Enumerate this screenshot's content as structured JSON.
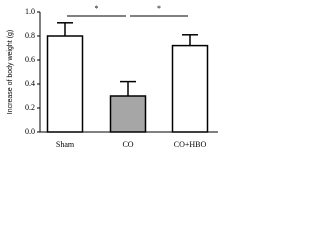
{
  "chart_data": {
    "type": "bar",
    "ylabel": "Increase of body weight (g)",
    "categories": [
      "Sham",
      "CO",
      "CO+HBO"
    ],
    "values": [
      0.8,
      0.3,
      0.72
    ],
    "errors": [
      0.11,
      0.12,
      0.09
    ],
    "colors": [
      "#ffffff",
      "#a6a6a6",
      "#ffffff"
    ],
    "ylim": [
      0,
      1.0
    ],
    "yticks": [
      {
        "value": 0,
        "label": "0.0"
      },
      0.2,
      0.4,
      0.6,
      0.8,
      {
        "value": 1.0,
        "label": "1.0"
      }
    ],
    "annotations": [
      "*",
      "*"
    ]
  }
}
